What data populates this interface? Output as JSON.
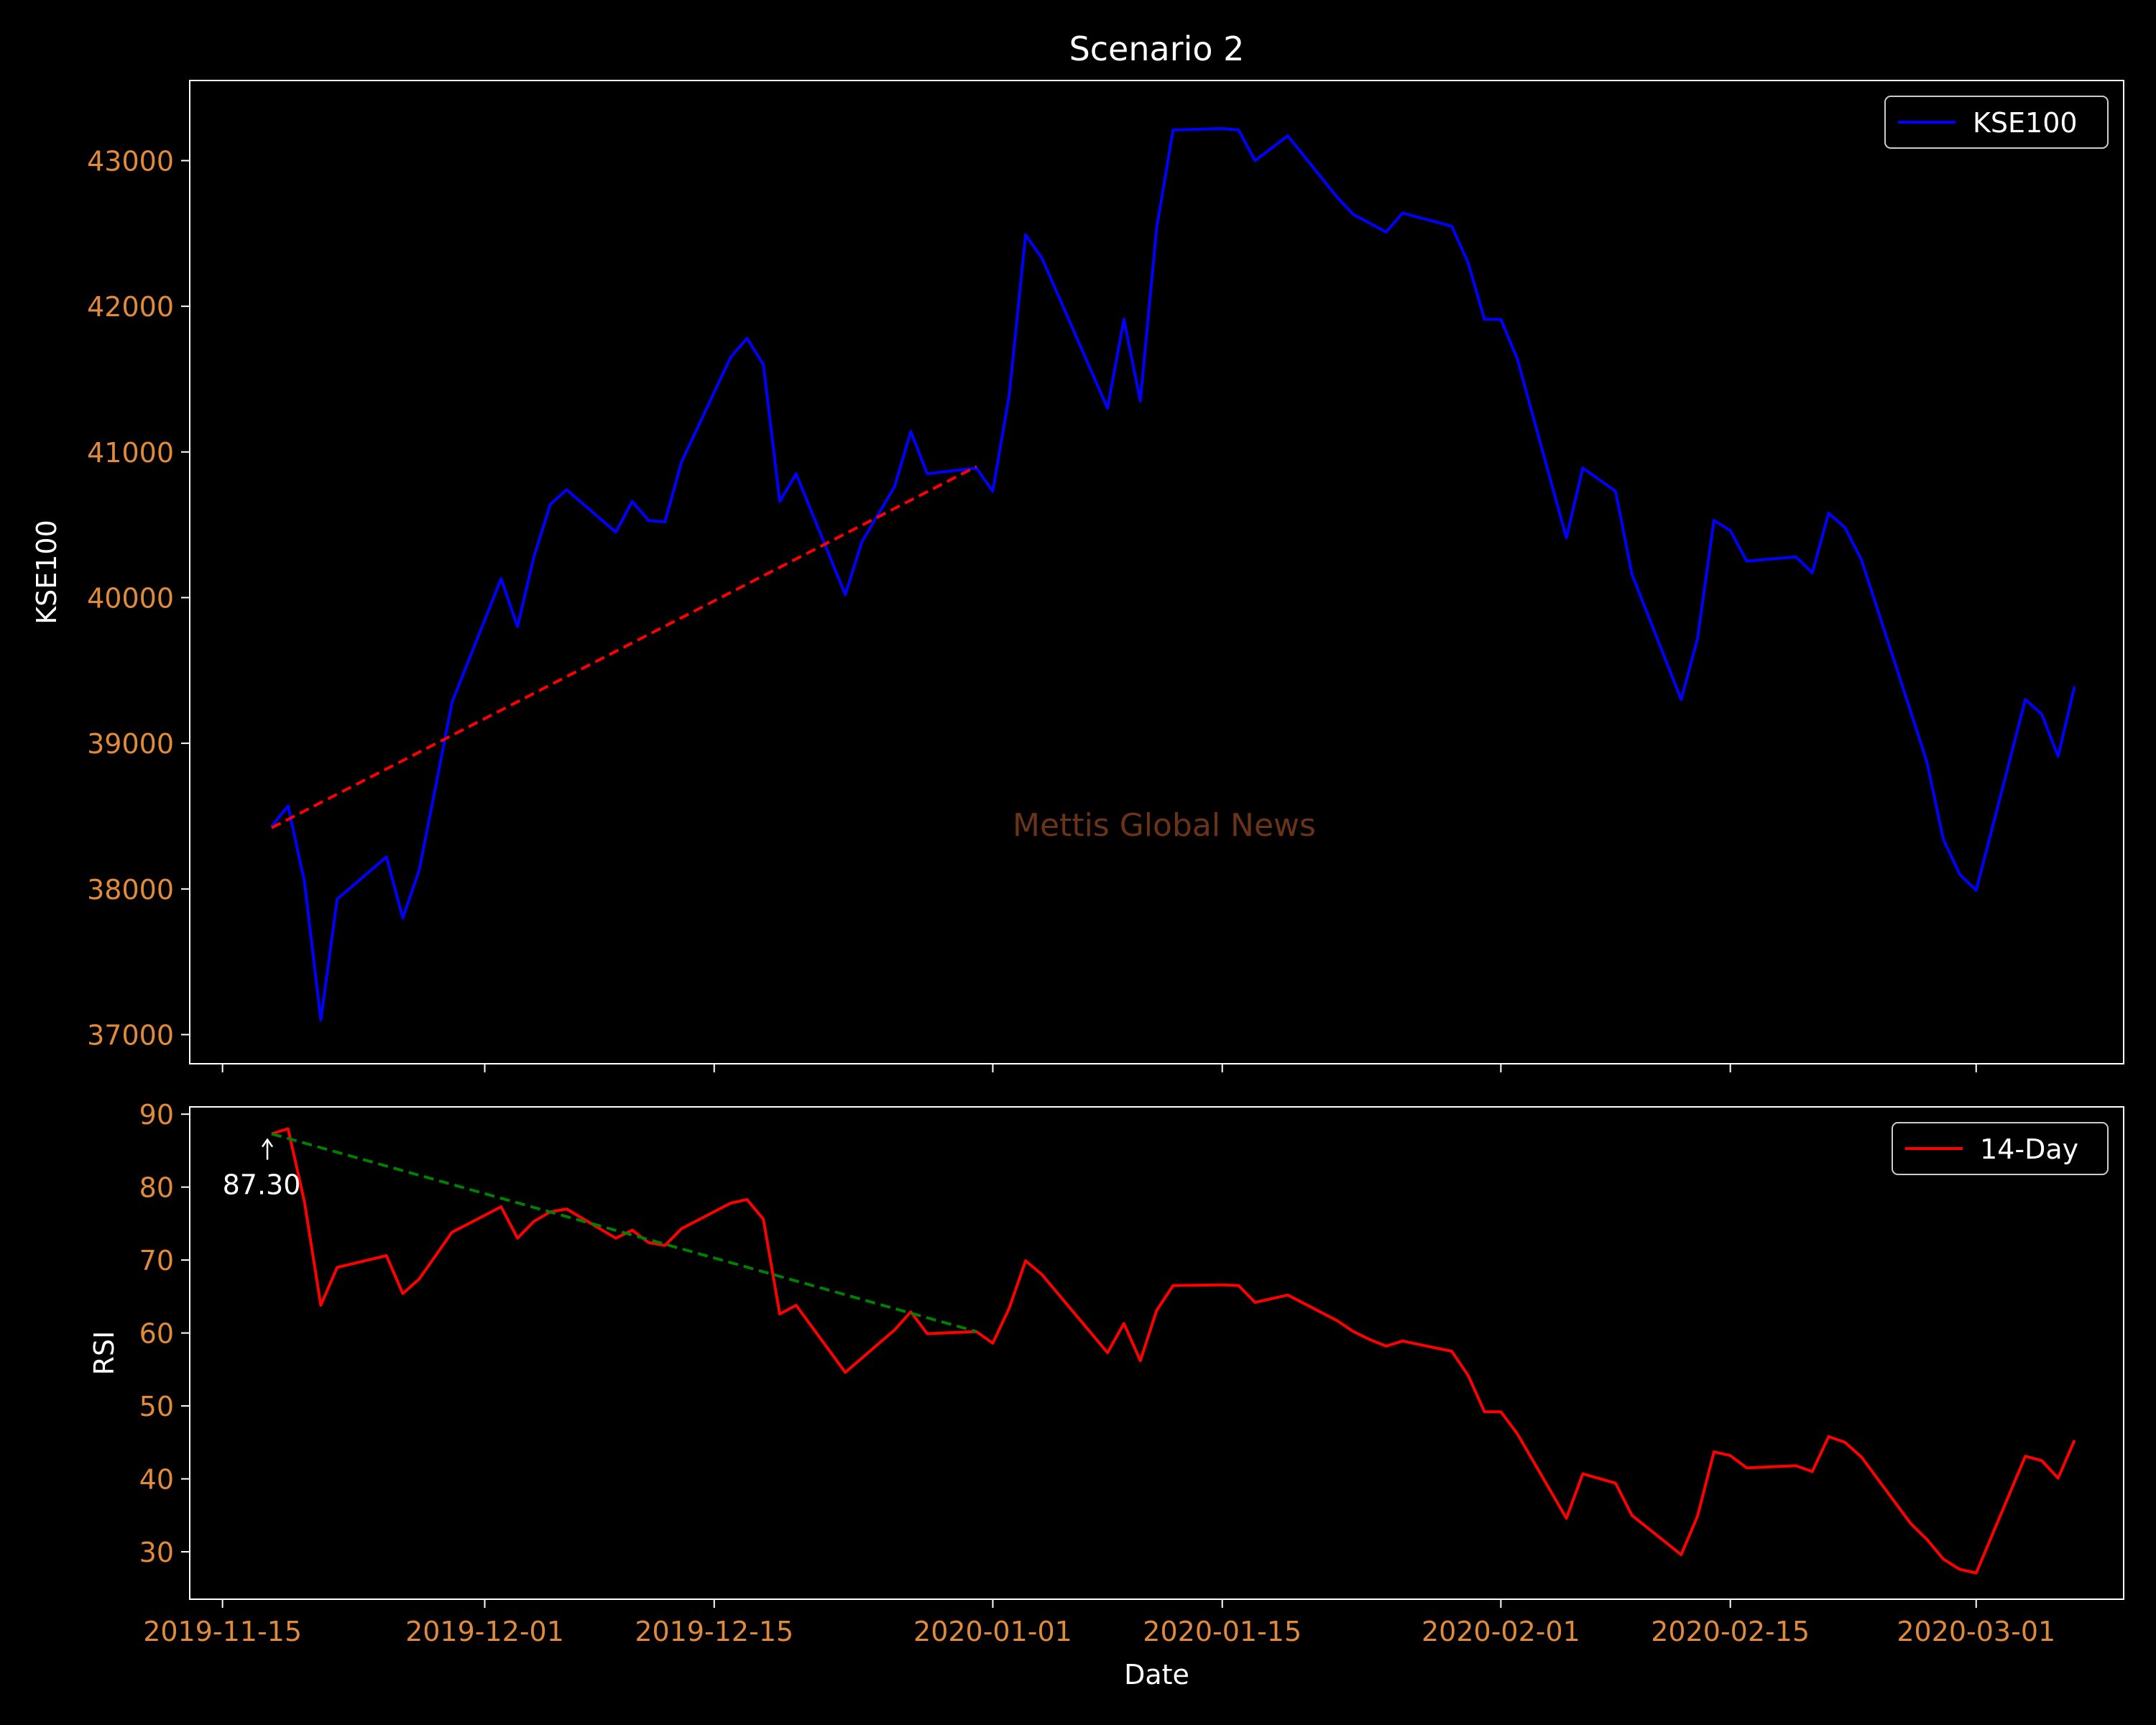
{
  "chart_data": [
    {
      "type": "line",
      "title": "Scenario 2",
      "xlabel": "",
      "ylabel": "KSE100",
      "ylim": [
        36800,
        43550
      ],
      "yticks": [
        37000,
        38000,
        39000,
        40000,
        41000,
        42000,
        43000
      ],
      "legend": {
        "position": "top-right",
        "entries": [
          "KSE100"
        ]
      },
      "watermark": "Mettis Global News",
      "series": [
        {
          "name": "KSE100",
          "color": "#0000ff",
          "points": [
            [
              "2019-11-18",
              38430
            ],
            [
              "2019-11-19",
              38570
            ],
            [
              "2019-11-20",
              38050
            ],
            [
              "2019-11-21",
              37100
            ],
            [
              "2019-11-22",
              37930
            ],
            [
              "2019-11-25",
              38220
            ],
            [
              "2019-11-26",
              37800
            ],
            [
              "2019-11-27",
              38130
            ],
            [
              "2019-11-28",
              38700
            ],
            [
              "2019-11-29",
              39280
            ],
            [
              "2019-12-02",
              40130
            ],
            [
              "2019-12-03",
              39800
            ],
            [
              "2019-12-04",
              40280
            ],
            [
              "2019-12-05",
              40640
            ],
            [
              "2019-12-06",
              40740
            ],
            [
              "2019-12-09",
              40450
            ],
            [
              "2019-12-10",
              40660
            ],
            [
              "2019-12-11",
              40530
            ],
            [
              "2019-12-12",
              40520
            ],
            [
              "2019-12-13",
              40930
            ],
            [
              "2019-12-16",
              41650
            ],
            [
              "2019-12-17",
              41780
            ],
            [
              "2019-12-18",
              41600
            ],
            [
              "2019-12-19",
              40660
            ],
            [
              "2019-12-20",
              40850
            ],
            [
              "2019-12-23",
              40020
            ],
            [
              "2019-12-24",
              40380
            ],
            [
              "2019-12-26",
              40760
            ],
            [
              "2019-12-27",
              41140
            ],
            [
              "2019-12-28",
              40850
            ],
            [
              "2019-12-31",
              40890
            ],
            [
              "2020-01-01",
              40730
            ],
            [
              "2020-01-02",
              41390
            ],
            [
              "2020-01-03",
              42490
            ],
            [
              "2020-01-04",
              42330
            ],
            [
              "2020-01-08",
              41300
            ],
            [
              "2020-01-09",
              41910
            ],
            [
              "2020-01-10",
              41350
            ],
            [
              "2020-01-11",
              42540
            ],
            [
              "2020-01-12",
              43210
            ],
            [
              "2020-01-15",
              43220
            ],
            [
              "2020-01-16",
              43210
            ],
            [
              "2020-01-17",
              43000
            ],
            [
              "2020-01-19",
              43170
            ],
            [
              "2020-01-22",
              42750
            ],
            [
              "2020-01-23",
              42630
            ],
            [
              "2020-01-25",
              42510
            ],
            [
              "2020-01-26",
              42640
            ],
            [
              "2020-01-29",
              42550
            ],
            [
              "2020-01-30",
              42300
            ],
            [
              "2020-01-31",
              41910
            ],
            [
              "2020-02-01",
              41910
            ],
            [
              "2020-02-02",
              41640
            ],
            [
              "2020-02-05",
              40410
            ],
            [
              "2020-02-06",
              40890
            ],
            [
              "2020-02-08",
              40730
            ],
            [
              "2020-02-09",
              40160
            ],
            [
              "2020-02-12",
              39300
            ],
            [
              "2020-02-13",
              39720
            ],
            [
              "2020-02-14",
              40530
            ],
            [
              "2020-02-15",
              40460
            ],
            [
              "2020-02-16",
              40250
            ],
            [
              "2020-02-19",
              40280
            ],
            [
              "2020-02-20",
              40170
            ],
            [
              "2020-02-21",
              40580
            ],
            [
              "2020-02-22",
              40480
            ],
            [
              "2020-02-23",
              40260
            ],
            [
              "2020-02-26",
              39220
            ],
            [
              "2020-02-27",
              38870
            ],
            [
              "2020-02-28",
              38340
            ],
            [
              "2020-02-29",
              38100
            ],
            [
              "2020-03-01",
              37990
            ],
            [
              "2020-03-04",
              39300
            ],
            [
              "2020-03-05",
              39200
            ],
            [
              "2020-03-06",
              38910
            ],
            [
              "2020-03-07",
              39390
            ]
          ]
        }
      ],
      "trendline": {
        "color": "#ff0000",
        "style": "dashed",
        "points": [
          [
            "2019-11-18",
            38420
          ],
          [
            "2019-12-31",
            40900
          ]
        ]
      }
    },
    {
      "type": "line",
      "title": "",
      "xlabel": "Date",
      "ylabel": "RSI",
      "ylim": [
        23.5,
        91
      ],
      "yticks": [
        30,
        40,
        50,
        60,
        70,
        80,
        90
      ],
      "xticks": [
        "2019-11-15",
        "2019-12-01",
        "2019-12-15",
        "2020-01-01",
        "2020-01-15",
        "2020-02-01",
        "2020-02-15",
        "2020-03-01"
      ],
      "xlim": [
        "2019-11-13",
        "2020-03-10"
      ],
      "legend": {
        "position": "top-right",
        "entries": [
          "14-Day"
        ]
      },
      "annotation": {
        "text": "87.30",
        "point": [
          "2019-11-18",
          87.3
        ]
      },
      "series": [
        {
          "name": "14-Day",
          "color": "#ff0000",
          "points": [
            [
              "2019-11-18",
              87.3
            ],
            [
              "2019-11-19",
              88.0
            ],
            [
              "2019-11-20",
              78.0
            ],
            [
              "2019-11-21",
              63.8
            ],
            [
              "2019-11-22",
              69.0
            ],
            [
              "2019-11-25",
              70.6
            ],
            [
              "2019-11-26",
              65.4
            ],
            [
              "2019-11-27",
              67.4
            ],
            [
              "2019-11-28",
              70.6
            ],
            [
              "2019-11-29",
              73.8
            ],
            [
              "2019-12-02",
              77.3
            ],
            [
              "2019-12-03",
              73.0
            ],
            [
              "2019-12-04",
              75.3
            ],
            [
              "2019-12-05",
              76.6
            ],
            [
              "2019-12-06",
              77.0
            ],
            [
              "2019-12-09",
              73.0
            ],
            [
              "2019-12-10",
              74.1
            ],
            [
              "2019-12-11",
              72.4
            ],
            [
              "2019-12-12",
              72.0
            ],
            [
              "2019-12-13",
              74.3
            ],
            [
              "2019-12-16",
              77.8
            ],
            [
              "2019-12-17",
              78.3
            ],
            [
              "2019-12-18",
              75.6
            ],
            [
              "2019-12-19",
              62.6
            ],
            [
              "2019-12-20",
              63.8
            ],
            [
              "2019-12-23",
              54.6
            ],
            [
              "2019-12-26",
              60.4
            ],
            [
              "2019-12-27",
              62.9
            ],
            [
              "2019-12-28",
              59.9
            ],
            [
              "2019-12-31",
              60.2
            ],
            [
              "2020-01-01",
              58.6
            ],
            [
              "2020-01-02",
              63.4
            ],
            [
              "2020-01-03",
              69.9
            ],
            [
              "2020-01-04",
              68.0
            ],
            [
              "2020-01-08",
              57.3
            ],
            [
              "2020-01-09",
              61.3
            ],
            [
              "2020-01-10",
              56.2
            ],
            [
              "2020-01-11",
              63.1
            ],
            [
              "2020-01-12",
              66.5
            ],
            [
              "2020-01-15",
              66.6
            ],
            [
              "2020-01-16",
              66.5
            ],
            [
              "2020-01-17",
              64.2
            ],
            [
              "2020-01-19",
              65.2
            ],
            [
              "2020-01-22",
              61.7
            ],
            [
              "2020-01-23",
              60.2
            ],
            [
              "2020-01-24",
              59.1
            ],
            [
              "2020-01-25",
              58.2
            ],
            [
              "2020-01-26",
              58.9
            ],
            [
              "2020-01-29",
              57.5
            ],
            [
              "2020-01-30",
              54.2
            ],
            [
              "2020-01-31",
              49.2
            ],
            [
              "2020-02-01",
              49.2
            ],
            [
              "2020-02-02",
              46.2
            ],
            [
              "2020-02-05",
              34.6
            ],
            [
              "2020-02-06",
              40.7
            ],
            [
              "2020-02-08",
              39.4
            ],
            [
              "2020-02-09",
              35.0
            ],
            [
              "2020-02-12",
              29.6
            ],
            [
              "2020-02-13",
              34.9
            ],
            [
              "2020-02-14",
              43.7
            ],
            [
              "2020-02-15",
              43.2
            ],
            [
              "2020-02-16",
              41.5
            ],
            [
              "2020-02-19",
              41.8
            ],
            [
              "2020-02-20",
              41.0
            ],
            [
              "2020-02-21",
              45.8
            ],
            [
              "2020-02-22",
              45.0
            ],
            [
              "2020-02-23",
              43.0
            ],
            [
              "2020-02-26",
              33.9
            ],
            [
              "2020-02-27",
              31.7
            ],
            [
              "2020-02-28",
              29.0
            ],
            [
              "2020-02-29",
              27.6
            ],
            [
              "2020-03-01",
              27.1
            ],
            [
              "2020-03-04",
              43.1
            ],
            [
              "2020-03-05",
              42.5
            ],
            [
              "2020-03-06",
              40.1
            ],
            [
              "2020-03-07",
              45.3
            ]
          ]
        }
      ],
      "trendline": {
        "color": "#008000",
        "style": "dashed",
        "points": [
          [
            "2019-11-18",
            87.3
          ],
          [
            "2019-12-31",
            60.2
          ]
        ]
      }
    }
  ],
  "colors": {
    "background": "#000000",
    "foreground": "#ffffff",
    "tick_label": "#e08a3c",
    "watermark": "#6b3318",
    "legend_border": "#cccccc"
  }
}
